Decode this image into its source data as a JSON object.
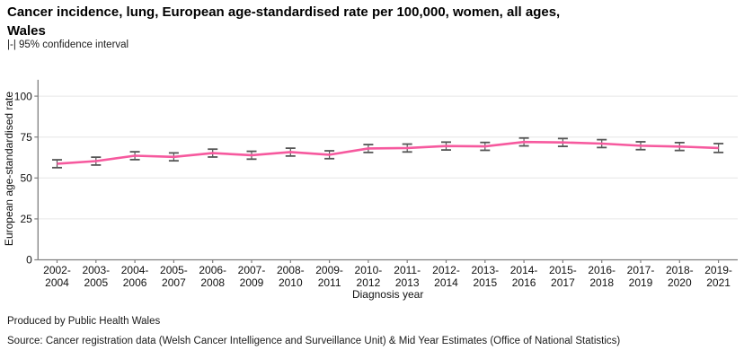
{
  "title": {
    "line1": "Cancer incidence, lung, European age-standardised rate per 100,000, women, all ages,",
    "line2": "Wales"
  },
  "legend_note": "|-| 95% confidence interval",
  "footer": {
    "produced_by": "Produced by Public Health Wales",
    "source": "Source: Cancer registration data (Welsh Cancer Intelligence and Surveillance Unit) & Mid Year Estimates (Office of National Statistics)"
  },
  "colors": {
    "line": "#F6599E",
    "error_bar": "#555555",
    "gridline": "#E6E6E6",
    "axis": "#808080",
    "text": "#111111"
  },
  "chart_data": {
    "type": "line",
    "title": "Cancer incidence, lung, European age-standardised rate per 100,000, women, all ages, Wales",
    "subtitle": "|-| 95% confidence interval",
    "xlabel": "Diagnosis year",
    "ylabel": "European age-standardised rate",
    "ylim": [
      0,
      110
    ],
    "yticks": [
      0,
      25,
      50,
      75,
      100
    ],
    "grid": true,
    "legend_position": "top-left note",
    "categories": [
      "2002-2004",
      "2003-2005",
      "2004-2006",
      "2005-2007",
      "2006-2008",
      "2007-2009",
      "2008-2010",
      "2009-2011",
      "2010-2012",
      "2011-2013",
      "2012-2014",
      "2013-2015",
      "2014-2016",
      "2015-2017",
      "2016-2018",
      "2017-2019",
      "2018-2020",
      "2019-2021"
    ],
    "series": [
      {
        "name": "European age-standardised rate",
        "values": [
          58.7,
          60.3,
          63.6,
          62.9,
          65.2,
          63.9,
          65.8,
          64.2,
          68.0,
          68.3,
          69.5,
          69.3,
          72.0,
          71.7,
          71.0,
          69.7,
          69.2,
          68.3
        ],
        "ci_low": [
          56.3,
          57.9,
          61.2,
          60.5,
          62.8,
          61.5,
          63.4,
          61.8,
          65.6,
          65.9,
          67.1,
          66.9,
          69.6,
          69.3,
          68.6,
          67.3,
          66.8,
          65.6
        ],
        "ci_high": [
          61.1,
          62.7,
          66.0,
          65.3,
          67.6,
          66.3,
          68.2,
          66.6,
          70.4,
          70.7,
          71.9,
          71.7,
          74.4,
          74.1,
          73.4,
          72.1,
          71.6,
          71.0
        ]
      }
    ]
  }
}
